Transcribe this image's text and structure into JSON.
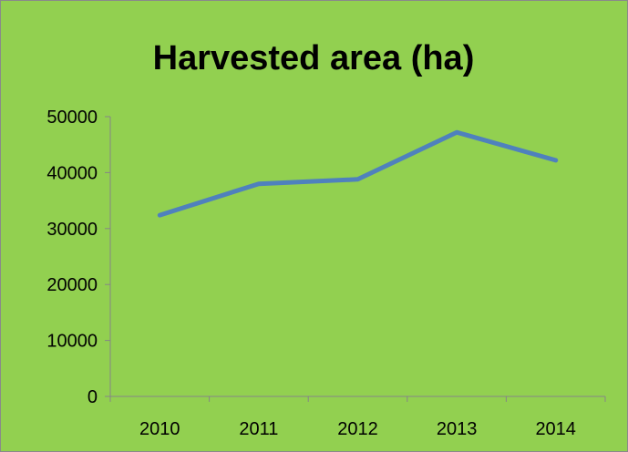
{
  "chart_data": {
    "type": "line",
    "title": "Harvested area (ha)",
    "categories": [
      "2010",
      "2011",
      "2012",
      "2013",
      "2014"
    ],
    "series": [
      {
        "values": [
          32400,
          38000,
          38800,
          47200,
          42200
        ]
      }
    ],
    "ylim": [
      0,
      50000
    ],
    "yticks": [
      0,
      10000,
      20000,
      30000,
      40000,
      50000
    ],
    "grid": false,
    "legend": "none",
    "colors": {
      "background": "#92d050",
      "line": "#4f81bd",
      "axis": "#868686"
    }
  }
}
